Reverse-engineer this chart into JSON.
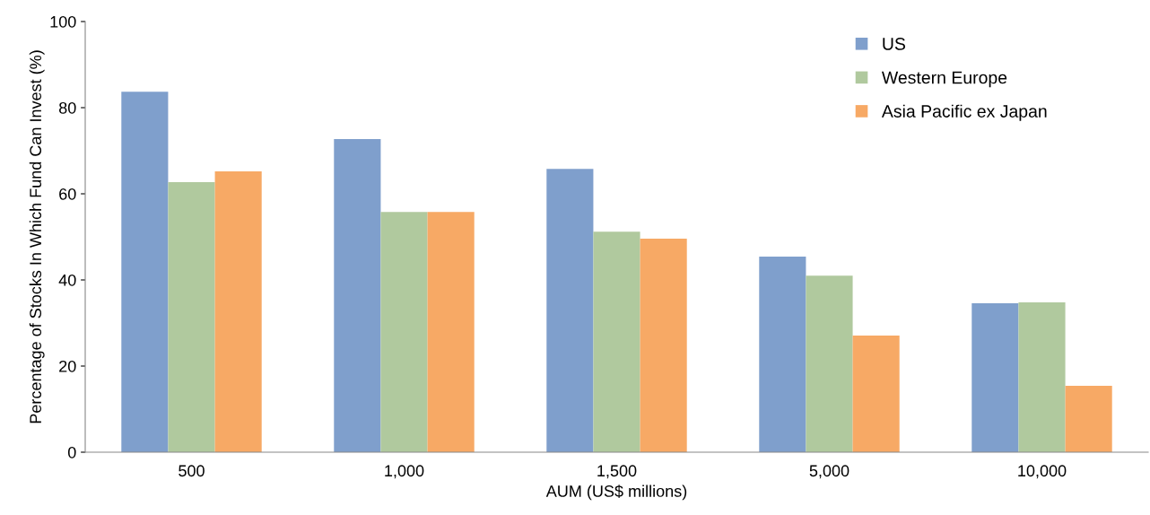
{
  "chart_data": {
    "type": "bar",
    "xlabel": "AUM (US$ millions)",
    "ylabel": "Percentage of Stocks In Which Fund Can Invest (%)",
    "categories": [
      "500",
      "1,000",
      "1,500",
      "5,000",
      "10,000"
    ],
    "series": [
      {
        "name": "US",
        "color": "#7f9fcc",
        "values": [
          83.7,
          72.7,
          65.8,
          45.4,
          34.6
        ]
      },
      {
        "name": "Western Europe",
        "color": "#b0c99e",
        "values": [
          62.7,
          55.8,
          51.2,
          41.0,
          34.8
        ]
      },
      {
        "name": "Asia Pacific ex Japan",
        "color": "#f7a965",
        "values": [
          65.2,
          55.8,
          49.6,
          27.1,
          15.4
        ]
      }
    ],
    "ylim": [
      0,
      100
    ],
    "yticks": [
      0,
      20,
      40,
      60,
      80,
      100
    ],
    "grid": false,
    "legend": "top right"
  }
}
